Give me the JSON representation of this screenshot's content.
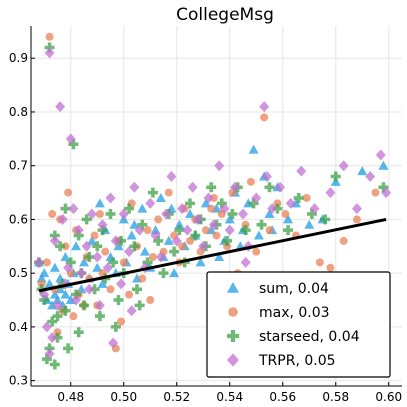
{
  "chart_data": {
    "type": "scatter",
    "title": "CollegeMsg",
    "xlabel": "",
    "ylabel": "",
    "xlim": [
      0.465,
      0.605
    ],
    "ylim": [
      0.29,
      0.96
    ],
    "xticks": [
      0.48,
      0.5,
      0.52,
      0.54,
      0.56,
      0.58,
      0.6
    ],
    "yticks": [
      0.3,
      0.4,
      0.5,
      0.6,
      0.7,
      0.8,
      0.9
    ],
    "xtick_labels": [
      "0.48",
      "0.50",
      "0.52",
      "0.54",
      "0.56",
      "0.58",
      "0.60"
    ],
    "ytick_labels": [
      "0.3",
      "0.4",
      "0.5",
      "0.6",
      "0.7",
      "0.8",
      "0.9"
    ],
    "grid": true,
    "legend_position": "bottom-right",
    "series": [
      {
        "name": "sum, 0.04",
        "marker": "triangle",
        "color": "#1f9ee6",
        "points": [
          [
            0.468,
            0.52
          ],
          [
            0.469,
            0.49
          ],
          [
            0.47,
            0.5
          ],
          [
            0.471,
            0.45
          ],
          [
            0.472,
            0.48
          ],
          [
            0.473,
            0.44
          ],
          [
            0.474,
            0.46
          ],
          [
            0.474,
            0.51
          ],
          [
            0.475,
            0.45
          ],
          [
            0.476,
            0.47
          ],
          [
            0.476,
            0.49
          ],
          [
            0.477,
            0.44
          ],
          [
            0.478,
            0.46
          ],
          [
            0.478,
            0.53
          ],
          [
            0.479,
            0.48
          ],
          [
            0.48,
            0.45
          ],
          [
            0.481,
            0.5
          ],
          [
            0.482,
            0.55
          ],
          [
            0.484,
            0.47
          ],
          [
            0.485,
            0.52
          ],
          [
            0.487,
            0.49
          ],
          [
            0.488,
            0.56
          ],
          [
            0.49,
            0.51
          ],
          [
            0.492,
            0.48
          ],
          [
            0.493,
            0.58
          ],
          [
            0.495,
            0.53
          ],
          [
            0.497,
            0.5
          ],
          [
            0.498,
            0.55
          ],
          [
            0.5,
            0.6
          ],
          [
            0.501,
            0.52
          ],
          [
            0.503,
            0.57
          ],
          [
            0.505,
            0.49
          ],
          [
            0.507,
            0.62
          ],
          [
            0.508,
            0.54
          ],
          [
            0.51,
            0.51
          ],
          [
            0.512,
            0.58
          ],
          [
            0.514,
            0.64
          ],
          [
            0.515,
            0.53
          ],
          [
            0.517,
            0.56
          ],
          [
            0.519,
            0.5
          ],
          [
            0.521,
            0.59
          ],
          [
            0.523,
            0.55
          ],
          [
            0.525,
            0.61
          ],
          [
            0.527,
            0.57
          ],
          [
            0.529,
            0.52
          ],
          [
            0.531,
            0.63
          ],
          [
            0.533,
            0.58
          ],
          [
            0.535,
            0.62
          ],
          [
            0.538,
            0.56
          ],
          [
            0.54,
            0.6
          ],
          [
            0.542,
            0.65
          ],
          [
            0.545,
            0.58
          ],
          [
            0.547,
            0.63
          ],
          [
            0.549,
            0.73
          ],
          [
            0.551,
            0.57
          ],
          [
            0.553,
            0.68
          ],
          [
            0.555,
            0.61
          ],
          [
            0.558,
            0.66
          ],
          [
            0.562,
            0.6
          ],
          [
            0.565,
            0.63
          ],
          [
            0.57,
            0.59
          ],
          [
            0.575,
            0.6
          ],
          [
            0.58,
            0.67
          ],
          [
            0.59,
            0.69
          ],
          [
            0.598,
            0.7
          ],
          [
            0.491,
            0.63
          ],
          [
            0.504,
            0.59
          ],
          [
            0.518,
            0.62
          ],
          [
            0.528,
            0.6
          ],
          [
            0.536,
            0.53
          ],
          [
            0.544,
            0.55
          ],
          [
            0.556,
            0.58
          ]
        ]
      },
      {
        "name": "max, 0.03",
        "marker": "circle",
        "color": "#ea8358",
        "points": [
          [
            0.469,
            0.48
          ],
          [
            0.471,
            0.52
          ],
          [
            0.472,
            0.94
          ],
          [
            0.473,
            0.61
          ],
          [
            0.474,
            0.47
          ],
          [
            0.475,
            0.39
          ],
          [
            0.476,
            0.6
          ],
          [
            0.477,
            0.43
          ],
          [
            0.478,
            0.55
          ],
          [
            0.479,
            0.65
          ],
          [
            0.48,
            0.5
          ],
          [
            0.481,
            0.42
          ],
          [
            0.482,
            0.58
          ],
          [
            0.483,
            0.46
          ],
          [
            0.485,
            0.44
          ],
          [
            0.486,
            0.53
          ],
          [
            0.487,
            0.49
          ],
          [
            0.489,
            0.57
          ],
          [
            0.49,
            0.44
          ],
          [
            0.491,
            0.61
          ],
          [
            0.492,
            0.5
          ],
          [
            0.493,
            0.54
          ],
          [
            0.495,
            0.47
          ],
          [
            0.497,
            0.36
          ],
          [
            0.498,
            0.56
          ],
          [
            0.5,
            0.52
          ],
          [
            0.502,
            0.46
          ],
          [
            0.503,
            0.63
          ],
          [
            0.505,
            0.55
          ],
          [
            0.507,
            0.49
          ],
          [
            0.509,
            0.58
          ],
          [
            0.511,
            0.53
          ],
          [
            0.513,
            0.6
          ],
          [
            0.515,
            0.54
          ],
          [
            0.517,
            0.65
          ],
          [
            0.519,
            0.57
          ],
          [
            0.521,
            0.52
          ],
          [
            0.523,
            0.62
          ],
          [
            0.525,
            0.56
          ],
          [
            0.527,
            0.6
          ],
          [
            0.529,
            0.54
          ],
          [
            0.531,
            0.58
          ],
          [
            0.533,
            0.62
          ],
          [
            0.535,
            0.57
          ],
          [
            0.537,
            0.61
          ],
          [
            0.539,
            0.55
          ],
          [
            0.541,
            0.65
          ],
          [
            0.543,
            0.5
          ],
          [
            0.546,
            0.59
          ],
          [
            0.548,
            0.67
          ],
          [
            0.55,
            0.54
          ],
          [
            0.553,
            0.79
          ],
          [
            0.555,
            0.58
          ],
          [
            0.558,
            0.63
          ],
          [
            0.561,
            0.61
          ],
          [
            0.565,
            0.57
          ],
          [
            0.569,
            0.64
          ],
          [
            0.574,
            0.52
          ],
          [
            0.578,
            0.51
          ],
          [
            0.583,
            0.56
          ],
          [
            0.588,
            0.6
          ],
          [
            0.595,
            0.65
          ],
          [
            0.499,
            0.41
          ],
          [
            0.51,
            0.45
          ],
          [
            0.522,
            0.55
          ],
          [
            0.534,
            0.64
          ]
        ]
      },
      {
        "name": "starseed, 0.04",
        "marker": "cross",
        "color": "#3ea146",
        "points": [
          [
            0.468,
            0.52
          ],
          [
            0.469,
            0.47
          ],
          [
            0.47,
            0.45
          ],
          [
            0.471,
            0.34
          ],
          [
            0.472,
            0.36
          ],
          [
            0.472,
            0.92
          ],
          [
            0.473,
            0.41
          ],
          [
            0.474,
            0.33
          ],
          [
            0.474,
            0.57
          ],
          [
            0.475,
            0.38
          ],
          [
            0.476,
            0.55
          ],
          [
            0.477,
            0.48
          ],
          [
            0.478,
            0.43
          ],
          [
            0.478,
            0.62
          ],
          [
            0.479,
            0.36
          ],
          [
            0.48,
            0.52
          ],
          [
            0.481,
            0.74
          ],
          [
            0.482,
            0.46
          ],
          [
            0.483,
            0.57
          ],
          [
            0.484,
            0.5
          ],
          [
            0.485,
            0.44
          ],
          [
            0.486,
            0.6
          ],
          [
            0.487,
            0.53
          ],
          [
            0.489,
            0.47
          ],
          [
            0.49,
            0.55
          ],
          [
            0.491,
            0.42
          ],
          [
            0.492,
            0.58
          ],
          [
            0.493,
            0.49
          ],
          [
            0.495,
            0.61
          ],
          [
            0.496,
            0.52
          ],
          [
            0.498,
            0.45
          ],
          [
            0.499,
            0.56
          ],
          [
            0.5,
            0.5
          ],
          [
            0.502,
            0.62
          ],
          [
            0.504,
            0.55
          ],
          [
            0.505,
            0.47
          ],
          [
            0.507,
            0.59
          ],
          [
            0.509,
            0.52
          ],
          [
            0.511,
            0.65
          ],
          [
            0.513,
            0.56
          ],
          [
            0.515,
            0.5
          ],
          [
            0.517,
            0.61
          ],
          [
            0.519,
            0.54
          ],
          [
            0.521,
            0.58
          ],
          [
            0.523,
            0.52
          ],
          [
            0.525,
            0.63
          ],
          [
            0.527,
            0.57
          ],
          [
            0.529,
            0.6
          ],
          [
            0.531,
            0.55
          ],
          [
            0.533,
            0.66
          ],
          [
            0.535,
            0.59
          ],
          [
            0.537,
            0.63
          ],
          [
            0.539,
            0.56
          ],
          [
            0.541,
            0.61
          ],
          [
            0.543,
            0.66
          ],
          [
            0.546,
            0.58
          ],
          [
            0.549,
            0.63
          ],
          [
            0.552,
            0.59
          ],
          [
            0.555,
            0.66
          ],
          [
            0.558,
            0.62
          ],
          [
            0.562,
            0.58
          ],
          [
            0.566,
            0.64
          ],
          [
            0.571,
            0.61
          ],
          [
            0.576,
            0.6
          ],
          [
            0.58,
            0.68
          ],
          [
            0.598,
            0.66
          ],
          [
            0.475,
            0.42
          ],
          [
            0.483,
            0.39
          ],
          [
            0.497,
            0.4
          ],
          [
            0.506,
            0.44
          ]
        ]
      },
      {
        "name": "TRPR, 0.05",
        "marker": "diamond",
        "color": "#c271d2",
        "points": [
          [
            0.468,
            0.52
          ],
          [
            0.47,
            0.46
          ],
          [
            0.471,
            0.4
          ],
          [
            0.472,
            0.35
          ],
          [
            0.472,
            0.91
          ],
          [
            0.473,
            0.38
          ],
          [
            0.474,
            0.56
          ],
          [
            0.475,
            0.44
          ],
          [
            0.476,
            0.81
          ],
          [
            0.477,
            0.6
          ],
          [
            0.478,
            0.48
          ],
          [
            0.479,
            0.51
          ],
          [
            0.48,
            0.75
          ],
          [
            0.481,
            0.62
          ],
          [
            0.482,
            0.45
          ],
          [
            0.483,
            0.58
          ],
          [
            0.484,
            0.5
          ],
          [
            0.486,
            0.55
          ],
          [
            0.487,
            0.47
          ],
          [
            0.488,
            0.61
          ],
          [
            0.49,
            0.53
          ],
          [
            0.491,
            0.44
          ],
          [
            0.492,
            0.59
          ],
          [
            0.494,
            0.51
          ],
          [
            0.495,
            0.64
          ],
          [
            0.497,
            0.56
          ],
          [
            0.499,
            0.48
          ],
          [
            0.5,
            0.61
          ],
          [
            0.502,
            0.54
          ],
          [
            0.504,
            0.66
          ],
          [
            0.506,
            0.58
          ],
          [
            0.508,
            0.51
          ],
          [
            0.51,
            0.63
          ],
          [
            0.512,
            0.57
          ],
          [
            0.514,
            0.53
          ],
          [
            0.516,
            0.61
          ],
          [
            0.518,
            0.68
          ],
          [
            0.52,
            0.56
          ],
          [
            0.522,
            0.62
          ],
          [
            0.524,
            0.58
          ],
          [
            0.526,
            0.66
          ],
          [
            0.528,
            0.6
          ],
          [
            0.53,
            0.55
          ],
          [
            0.532,
            0.64
          ],
          [
            0.534,
            0.59
          ],
          [
            0.536,
            0.7
          ],
          [
            0.538,
            0.62
          ],
          [
            0.54,
            0.58
          ],
          [
            0.542,
            0.66
          ],
          [
            0.545,
            0.61
          ],
          [
            0.547,
            0.55
          ],
          [
            0.55,
            0.64
          ],
          [
            0.553,
            0.81
          ],
          [
            0.554,
            0.68
          ],
          [
            0.556,
            0.62
          ],
          [
            0.559,
            0.66
          ],
          [
            0.563,
            0.63
          ],
          [
            0.567,
            0.69
          ],
          [
            0.572,
            0.62
          ],
          [
            0.578,
            0.65
          ],
          [
            0.583,
            0.7
          ],
          [
            0.588,
            0.62
          ],
          [
            0.593,
            0.68
          ],
          [
            0.597,
            0.72
          ],
          [
            0.599,
            0.65
          ],
          [
            0.496,
            0.37
          ],
          [
            0.503,
            0.43
          ],
          [
            0.546,
            0.52
          ]
        ]
      }
    ],
    "trend_line": {
      "color": "#000000",
      "x": [
        0.468,
        0.599
      ],
      "y": [
        0.467,
        0.6
      ]
    }
  }
}
